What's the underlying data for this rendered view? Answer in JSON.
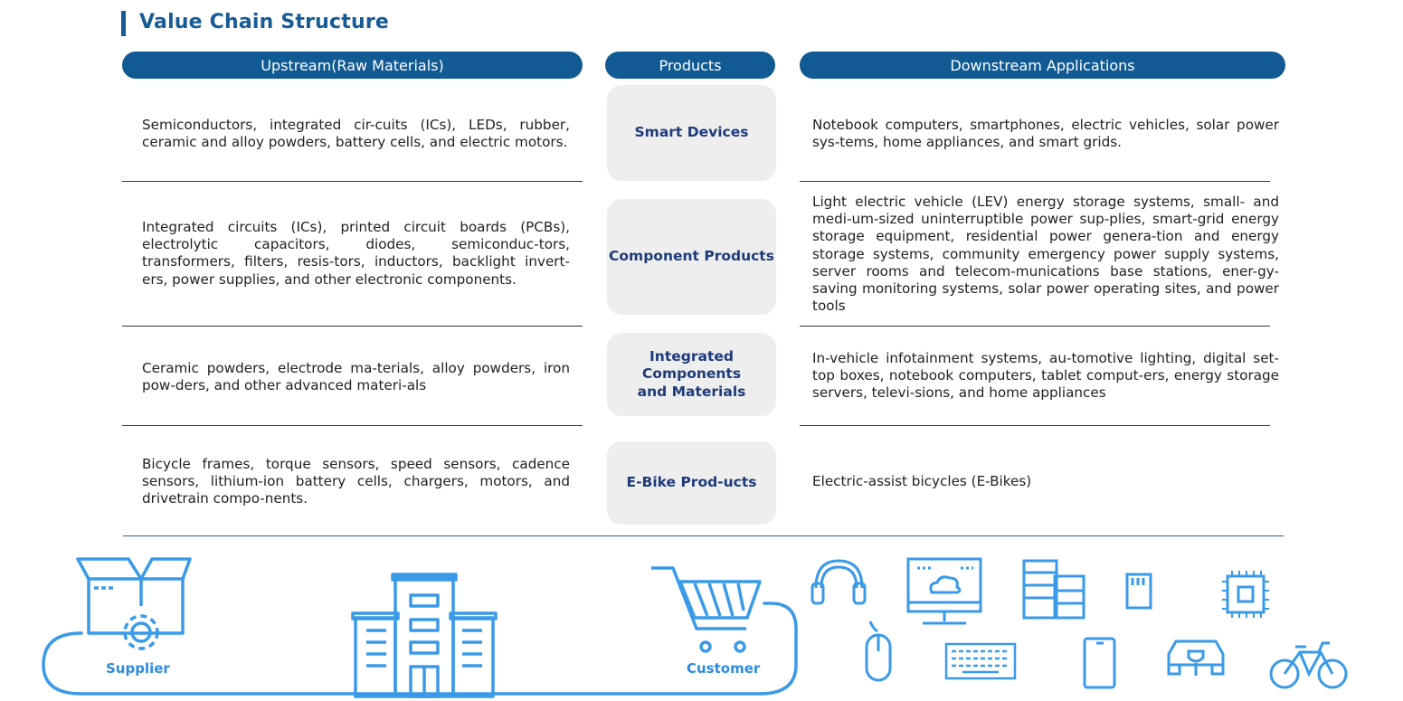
{
  "title": "Value Chain Structure",
  "headers": {
    "upstream": "Upstream(Raw Materials)",
    "products": "Products",
    "downstream": "Downstream Applications"
  },
  "rows": [
    {
      "upstream": "Semiconductors, integrated cir-cuits (ICs), LEDs, rubber, ceramic and alloy powders, battery cells, and electric motors.",
      "product": "Smart Devices",
      "downstream": "Notebook computers, smartphones, electric vehicles, solar power sys-tems, home appliances, and smart grids."
    },
    {
      "upstream": "Integrated circuits (ICs), printed circuit boards (PCBs), electrolytic capacitors, diodes, semiconduc-tors, transformers, filters, resis-tors, inductors, backlight invert-ers, power supplies, and other electronic components.",
      "product": "Component Products",
      "downstream": "Light electric vehicle (LEV) energy storage systems, small- and medi-um-sized uninterruptible power sup-plies, smart-grid energy storage equipment, residential power genera-tion and energy storage systems, community emergency power supply systems, server rooms and telecom-munications base stations, ener-gy-saving monitoring systems, solar power operating sites, and power tools"
    },
    {
      "upstream": "Ceramic powders, electrode ma-terials, alloy powders, iron pow-ders, and other advanced materi-als",
      "product": "Integrated Components and Materials",
      "downstream": "In-vehicle infotainment systems, au-tomotive lighting, digital set-top boxes, notebook computers, tablet comput-ers, energy storage servers, televi-sions, and home appliances"
    },
    {
      "upstream": "Bicycle frames, torque sensors, speed sensors, cadence sensors, lithium-ion battery cells, chargers, motors, and drivetrain compo-nents.",
      "product": "E-Bike Prod-ucts",
      "downstream": "Electric-assist bicycles (E-Bikes)"
    }
  ],
  "flow": {
    "supplier_label": "Supplier",
    "customer_label": "Customer"
  },
  "icons": [
    "box-gear-icon",
    "factory-building-icon",
    "shopping-cart-icon",
    "headphones-icon",
    "monitor-cloud-icon",
    "server-rack-icon",
    "sd-card-icon",
    "chip-icon",
    "mouse-icon",
    "keyboard-icon",
    "smartphone-icon",
    "electric-car-icon",
    "bicycle-icon"
  ],
  "colors": {
    "primary": "#115a93",
    "title": "#165b96",
    "icon": "#3a9ae8",
    "product_text": "#1e3b7a",
    "product_bg": "#eeeeee"
  }
}
